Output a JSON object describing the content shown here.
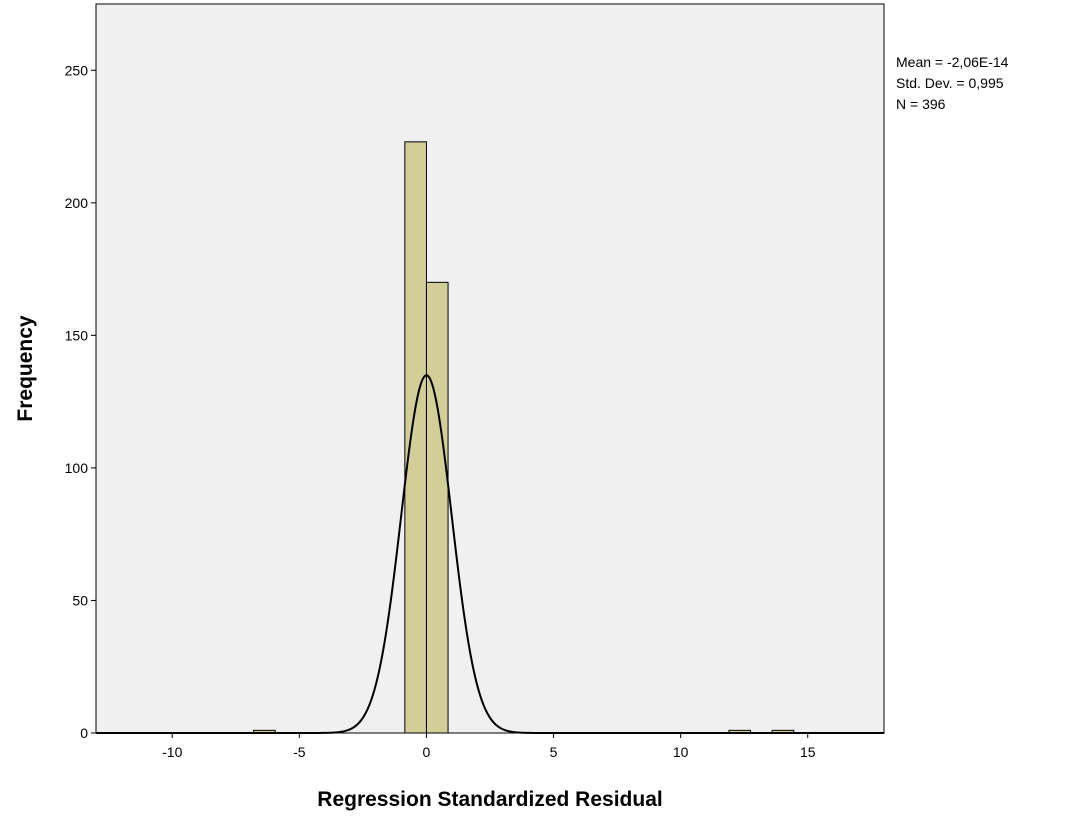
{
  "chart_data": {
    "type": "bar",
    "subtype": "histogram",
    "title": "",
    "xlabel": "Regression Standardized Residual",
    "ylabel": "Frequency",
    "xlim": [
      -13,
      18
    ],
    "ylim": [
      0,
      275
    ],
    "xticks": [
      -10,
      -5,
      0,
      5,
      10,
      15
    ],
    "yticks": [
      0,
      50,
      100,
      150,
      200,
      250
    ],
    "bin_width": 0.85,
    "bins": [
      {
        "x0": -6.8,
        "x1": -5.95,
        "count": 1
      },
      {
        "x0": -0.85,
        "x1": 0.0,
        "count": 223
      },
      {
        "x0": 0.0,
        "x1": 0.85,
        "count": 170
      },
      {
        "x0": 11.9,
        "x1": 12.75,
        "count": 1
      },
      {
        "x0": 13.6,
        "x1": 14.45,
        "count": 1
      }
    ],
    "normal_curve": {
      "mean": -2.06e-14,
      "std": 0.995,
      "n": 396
    },
    "stats": {
      "mean": "Mean = -2,06E-14",
      "std_dev": "Std. Dev. = 0,995",
      "n": "N = 396"
    },
    "colors": {
      "plot_background": "#f0f0f0",
      "bar_fill": "#d3ce97",
      "bar_stroke": "#000000",
      "curve": "#000000"
    }
  }
}
